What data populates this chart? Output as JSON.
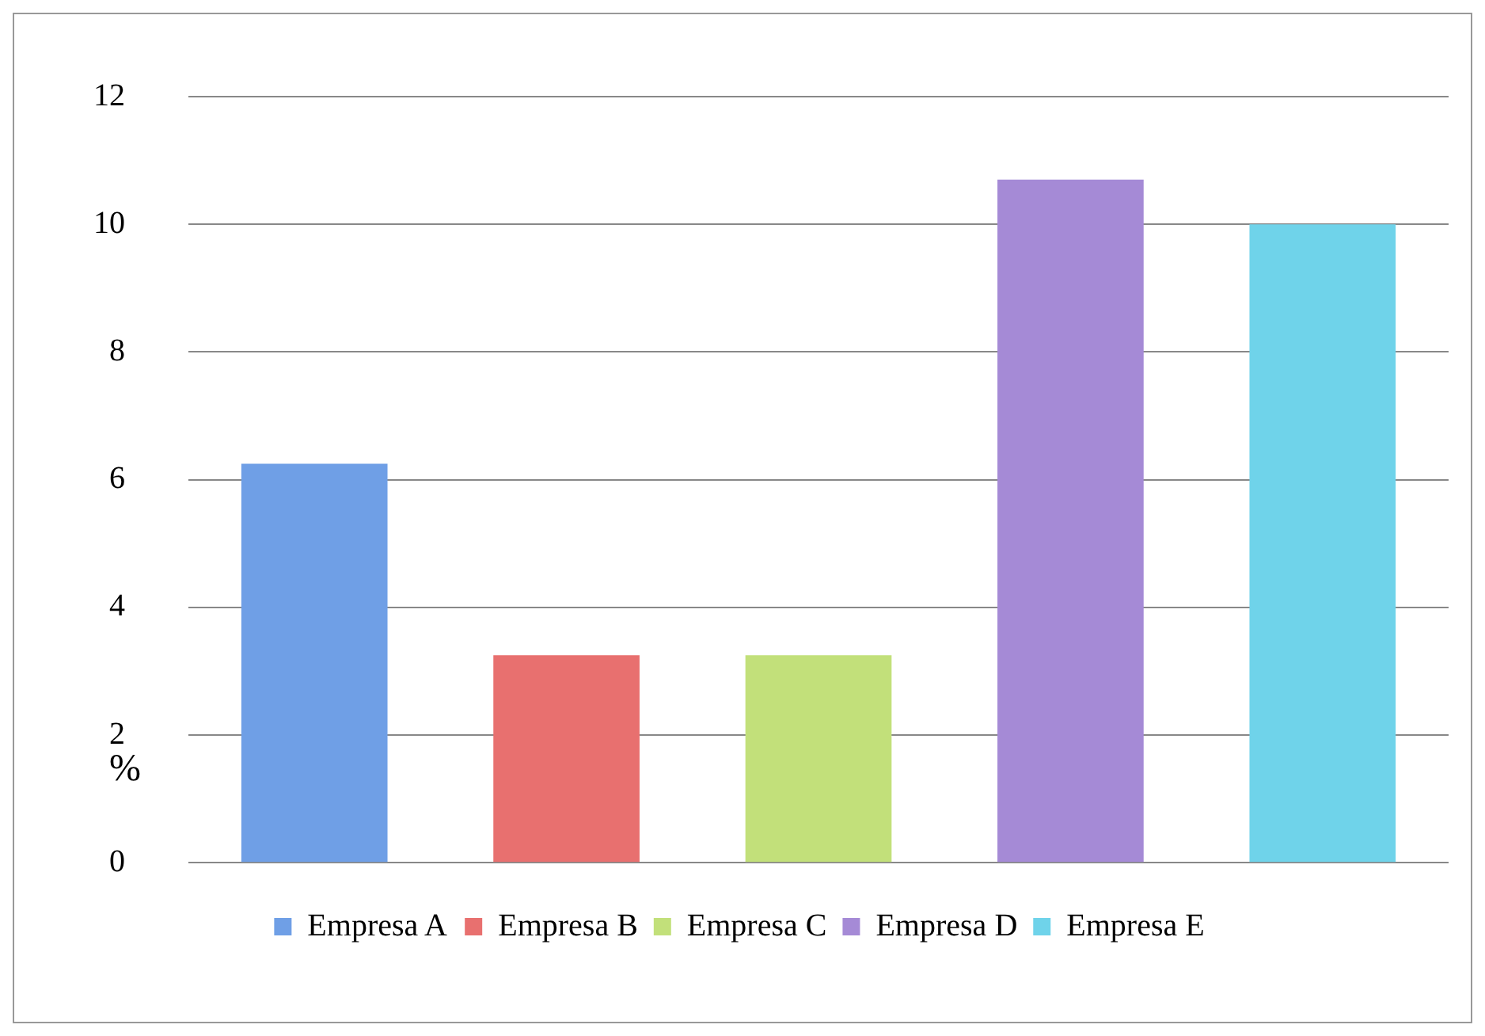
{
  "chart_data": {
    "type": "bar",
    "ylabel": "%",
    "categories": [
      null,
      null,
      null,
      null,
      null
    ],
    "series": [
      {
        "name": "Empresa A",
        "color": "#6f9fe6",
        "values": [
          6.25,
          null,
          null,
          null,
          null
        ]
      },
      {
        "name": "Empresa B",
        "color": "#e8706f",
        "values": [
          null,
          3.25,
          null,
          null,
          null
        ]
      },
      {
        "name": "Empresa C",
        "color": "#c2e07a",
        "values": [
          null,
          null,
          3.25,
          null,
          null
        ]
      },
      {
        "name": "Empresa D",
        "color": "#a58ad6",
        "values": [
          null,
          null,
          null,
          10.7,
          null
        ]
      },
      {
        "name": "Empresa E",
        "color": "#6fd3ea",
        "values": [
          null,
          null,
          null,
          null,
          10.0
        ]
      }
    ],
    "ylim": [
      0,
      12
    ],
    "yticks": [
      0,
      2,
      4,
      6,
      8,
      10,
      12
    ],
    "grid": "y",
    "legend": "bottom"
  }
}
